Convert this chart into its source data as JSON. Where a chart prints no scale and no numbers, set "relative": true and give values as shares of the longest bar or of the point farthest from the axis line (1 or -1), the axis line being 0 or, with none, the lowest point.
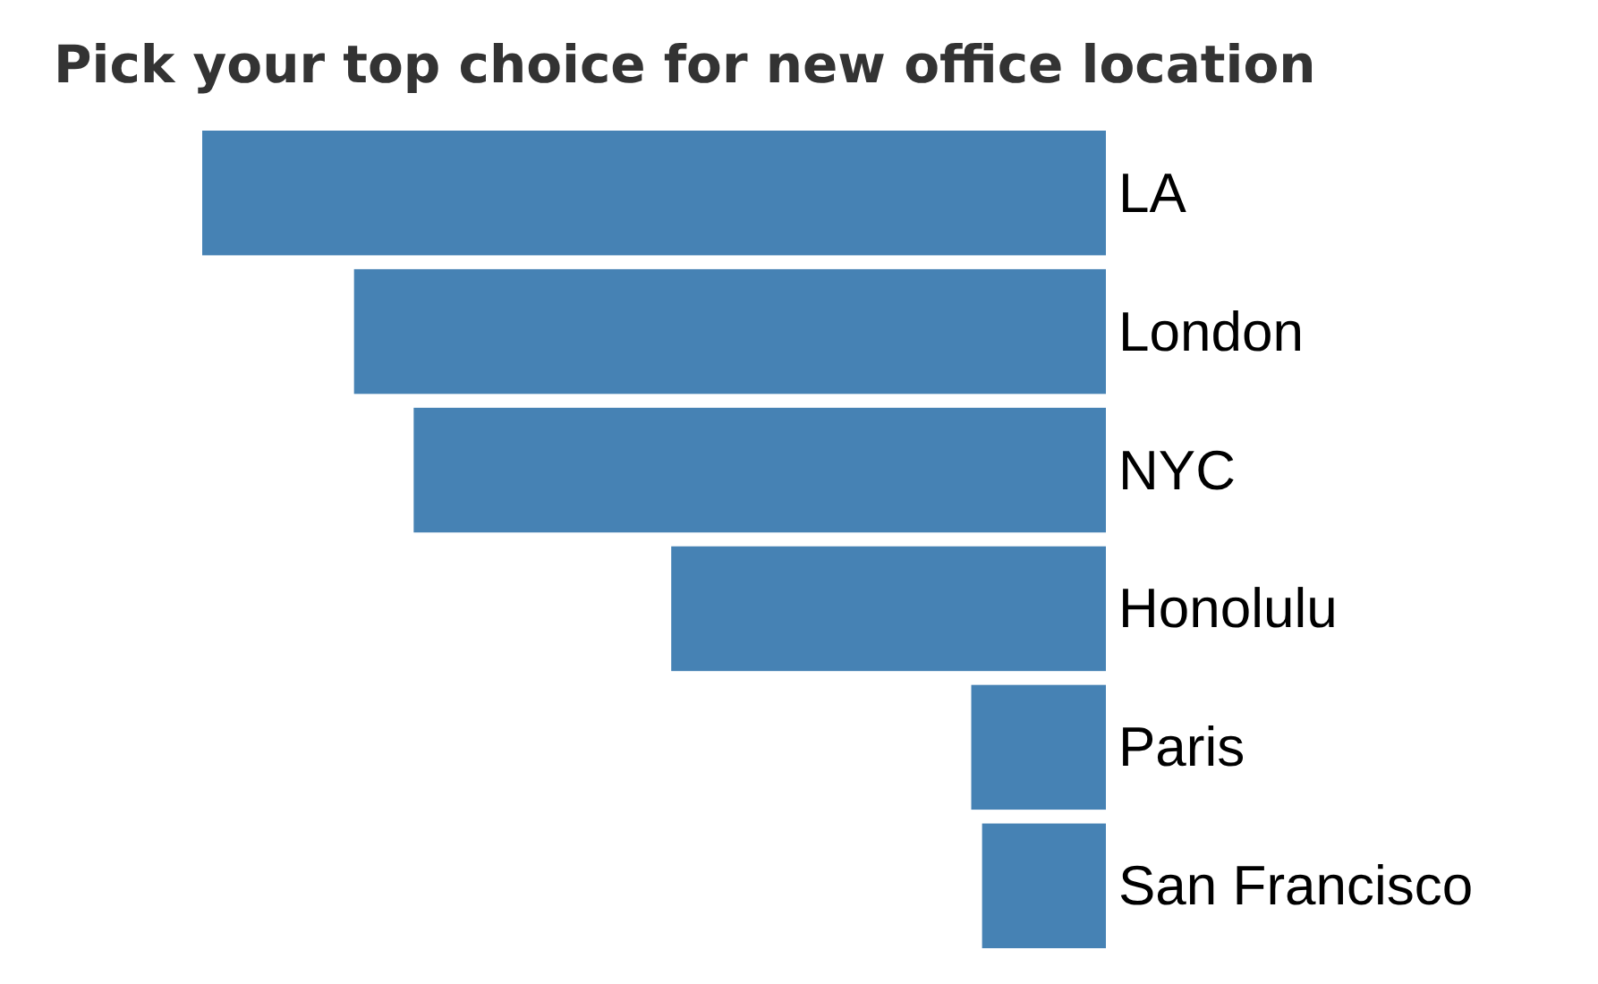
{
  "chart_data": {
    "type": "bar",
    "orientation": "horizontal",
    "relative": true,
    "title": "Pick your top choice for new office location",
    "categories": [
      "LA",
      "London",
      "NYC",
      "Honolulu",
      "Paris",
      "San Francisco"
    ],
    "values": [
      1,
      0.832,
      0.766,
      0.481,
      0.149,
      0.137
    ],
    "color": "#4682b4"
  }
}
